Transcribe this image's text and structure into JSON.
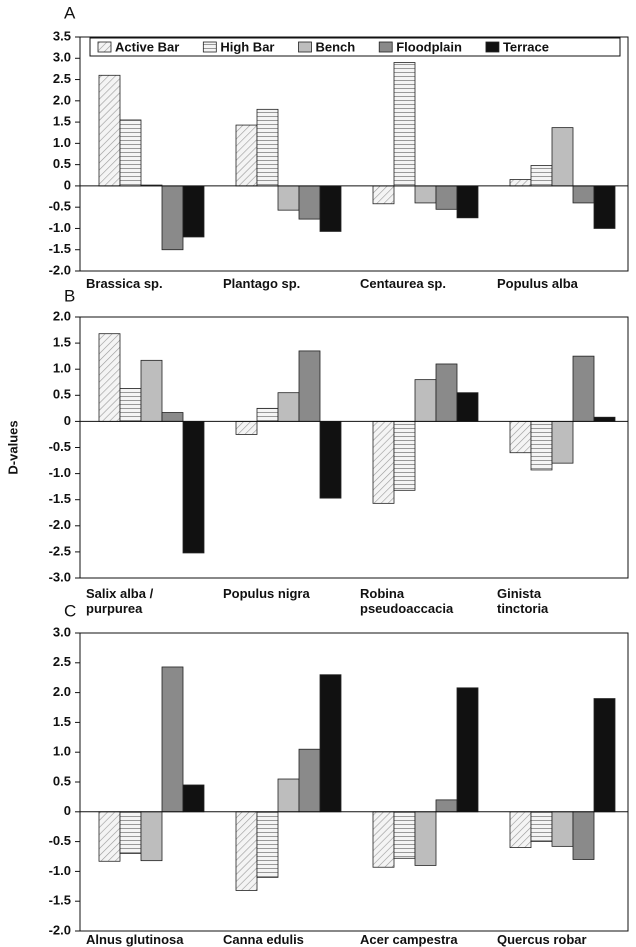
{
  "chart_data": [
    {
      "type": "bar",
      "title": "A",
      "categories": [
        "Brassica sp.",
        "Plantago sp.",
        "Centaurea sp.",
        "Populus alba"
      ],
      "series": [
        {
          "name": "Active Bar",
          "color": "#ffffff",
          "pattern": "diagonal",
          "values": [
            2.6,
            1.43,
            -0.42,
            0.15
          ]
        },
        {
          "name": "High Bar",
          "color": "#ffffff",
          "pattern": "horizontal",
          "values": [
            1.55,
            1.8,
            2.9,
            0.48
          ]
        },
        {
          "name": "Bench",
          "color": "#bdbdbd",
          "values": [
            0.02,
            -0.57,
            -0.4,
            1.37
          ]
        },
        {
          "name": "Floodplain",
          "color": "#8a8a8a",
          "values": [
            -1.5,
            -0.78,
            -0.55,
            -0.4
          ]
        },
        {
          "name": "Terrace",
          "color": "#111111",
          "values": [
            -1.2,
            -1.07,
            -0.75,
            -1.0
          ]
        }
      ],
      "ylim": [
        -2,
        3.5
      ],
      "yticks": [
        {
          "value": -2,
          "label": "-2.0"
        },
        -1.5,
        {
          "value": -1,
          "label": "-1.0"
        },
        -0.5,
        0,
        0.5,
        {
          "value": 1,
          "label": "1.0"
        },
        1.5,
        {
          "value": 2,
          "label": "2.0"
        },
        2.5,
        {
          "value": 3,
          "label": "3.0"
        },
        3.5
      ],
      "legend": "top"
    },
    {
      "type": "bar",
      "title": "B",
      "ylabel": "D-values",
      "categories": [
        "Salix alba /\npurpurea",
        "Populus nigra",
        "Robina\npseudoaccacia",
        "Ginista\ntinctoria"
      ],
      "series": [
        {
          "name": "Active Bar",
          "color": "#ffffff",
          "pattern": "diagonal",
          "values": [
            1.68,
            -0.25,
            -1.57,
            -0.6
          ]
        },
        {
          "name": "High Bar",
          "color": "#ffffff",
          "pattern": "horizontal",
          "values": [
            0.63,
            0.25,
            -1.32,
            -0.93
          ]
        },
        {
          "name": "Bench",
          "color": "#bdbdbd",
          "values": [
            1.17,
            0.55,
            0.8,
            -0.8
          ]
        },
        {
          "name": "Floodplain",
          "color": "#8a8a8a",
          "values": [
            0.17,
            1.35,
            1.1,
            1.25
          ]
        },
        {
          "name": "Terrace",
          "color": "#111111",
          "values": [
            -2.52,
            -1.47,
            0.55,
            0.08
          ]
        }
      ],
      "ylim": [
        -3,
        2
      ],
      "yticks": [
        {
          "value": -3,
          "label": "-3.0"
        },
        -2.5,
        {
          "value": -2,
          "label": "-2.0"
        },
        -1.5,
        {
          "value": -1,
          "label": "-1.0"
        },
        -0.5,
        0,
        0.5,
        {
          "value": 1,
          "label": "1.0"
        },
        1.5,
        {
          "value": 2,
          "label": "2.0"
        }
      ]
    },
    {
      "type": "bar",
      "title": "C",
      "categories": [
        "Alnus glutinosa",
        "Canna edulis",
        "Acer campestra",
        "Quercus robar"
      ],
      "series": [
        {
          "name": "Active Bar",
          "color": "#ffffff",
          "pattern": "diagonal",
          "values": [
            -0.83,
            -1.32,
            -0.93,
            -0.6
          ]
        },
        {
          "name": "High Bar",
          "color": "#ffffff",
          "pattern": "horizontal",
          "values": [
            -0.7,
            -1.1,
            -0.78,
            -0.5
          ]
        },
        {
          "name": "Bench",
          "color": "#bdbdbd",
          "values": [
            -0.82,
            0.55,
            -0.9,
            -0.58
          ]
        },
        {
          "name": "Floodplain",
          "color": "#8a8a8a",
          "values": [
            2.43,
            1.05,
            0.2,
            -0.8
          ]
        },
        {
          "name": "Terrace",
          "color": "#111111",
          "values": [
            0.45,
            2.3,
            2.08,
            1.9
          ]
        }
      ],
      "ylim": [
        -2,
        3
      ],
      "yticks": [
        {
          "value": -2,
          "label": "-2.0"
        },
        -1.5,
        {
          "value": -1,
          "label": "-1.0"
        },
        -0.5,
        0,
        0.5,
        {
          "value": 1,
          "label": "1.0"
        },
        1.5,
        {
          "value": 2,
          "label": "2.0"
        },
        2.5,
        {
          "value": 3,
          "label": "3.0"
        }
      ]
    }
  ]
}
